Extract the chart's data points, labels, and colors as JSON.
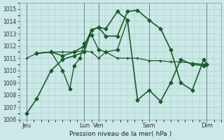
{
  "xlabel": "Pression niveau de la mer( hPa )",
  "bg_color": "#cce8e8",
  "grid_color": "#99ccbb",
  "line_color": "#1a5c2a",
  "vline_color": "#556666",
  "ylim": [
    1006,
    1015.5
  ],
  "yticks": [
    1006,
    1007,
    1008,
    1009,
    1010,
    1011,
    1012,
    1013,
    1014,
    1015
  ],
  "xlim": [
    0,
    14.0
  ],
  "x_tick_positions": [
    0.5,
    4.5,
    5.5,
    9.0,
    13.0
  ],
  "x_tick_labels": [
    "Jeu",
    "Lun",
    "Ven",
    "Sam",
    "Dim"
  ],
  "x_vlines": [
    0.5,
    4.5,
    5.5,
    9.0,
    13.0
  ],
  "series": [
    {
      "x": [
        0.5,
        1.2,
        2.2,
        3.0,
        3.8,
        4.5,
        5.0,
        5.5,
        6.0,
        6.8,
        7.5,
        8.2,
        9.0,
        9.8,
        10.5,
        11.2,
        12.0,
        12.8,
        13.0
      ],
      "y": [
        1006.5,
        1007.7,
        1010.0,
        1010.9,
        1011.2,
        1011.5,
        1013.3,
        1013.5,
        1012.8,
        1012.8,
        1014.8,
        1014.9,
        1014.1,
        1013.4,
        1011.7,
        1009.0,
        1008.4,
        1010.9,
        1010.5
      ],
      "marker": "D",
      "markersize": 2.5,
      "linewidth": 1.2
    },
    {
      "x": [
        0.5,
        1.2,
        2.2,
        3.0,
        3.8,
        4.5,
        5.0,
        5.5,
        6.0,
        6.8,
        7.5,
        8.2,
        9.0,
        9.8,
        10.5,
        11.2,
        12.0,
        12.8,
        13.0
      ],
      "y": [
        1011.0,
        1011.4,
        1011.5,
        1011.5,
        1011.5,
        1011.6,
        1011.5,
        1011.0,
        1011.5,
        1011.0,
        1011.0,
        1011.0,
        1010.8,
        1010.8,
        1010.7,
        1010.7,
        1010.6,
        1010.5,
        1010.5
      ],
      "marker": "P",
      "markersize": 3,
      "linewidth": 0.9
    },
    {
      "x": [
        1.2,
        2.2,
        3.0,
        3.8,
        4.5,
        5.0,
        5.5,
        6.0,
        6.8,
        7.5,
        8.2,
        9.0,
        9.8,
        10.5,
        11.2,
        12.0,
        12.8,
        13.0
      ],
      "y": [
        1011.4,
        1011.5,
        1011.2,
        1011.5,
        1012.0,
        1013.3,
        1013.5,
        1013.4,
        1014.8,
        1014.1,
        1007.6,
        1008.4,
        1007.5,
        1009.0,
        1010.9,
        1010.5,
        1010.4,
        1010.5
      ],
      "marker": "D",
      "markersize": 2.5,
      "linewidth": 1.2
    },
    {
      "x": [
        1.2,
        2.2,
        3.0,
        3.5,
        3.8,
        4.2,
        4.5,
        5.0,
        5.5,
        6.0,
        6.8,
        7.5
      ],
      "y": [
        1011.4,
        1011.5,
        1010.0,
        1008.5,
        1010.4,
        1011.0,
        1012.2,
        1012.9,
        1011.7,
        1011.5,
        1011.7,
        1014.1
      ],
      "marker": "D",
      "markersize": 2.5,
      "linewidth": 1.0
    }
  ]
}
